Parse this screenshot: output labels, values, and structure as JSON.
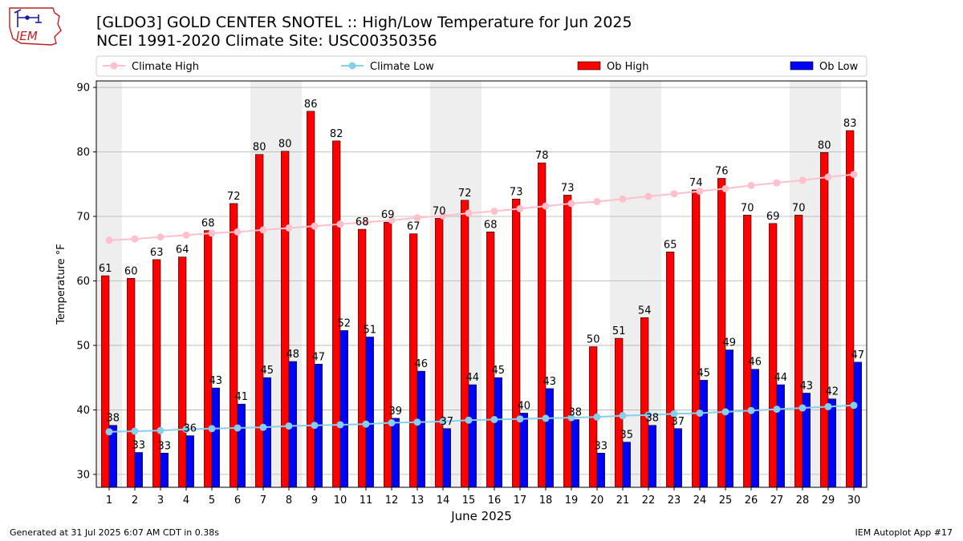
{
  "header": {
    "logo_text": "IEM",
    "title_line1": "[GLDO3] GOLD CENTER SNOTEL :: High/Low Temperature for Jun 2025",
    "title_line2": "NCEI 1991-2020 Climate Site: USC00350356"
  },
  "footer": {
    "left": "Generated at 31 Jul 2025 6:07 AM CDT in 0.38s",
    "right": "IEM Autoplot App #17"
  },
  "colors": {
    "ob_high": "#ff0000",
    "ob_low": "#0000ff",
    "climate_high": "#ffc0cb",
    "climate_low": "#87ceeb",
    "week_band": "#eeeeee",
    "grid": "#b0b0b0"
  },
  "chart_data": {
    "type": "bar",
    "xlabel": "June 2025",
    "ylabel": "Temperature °F",
    "ylim": [
      28,
      91
    ],
    "yticks": [
      30,
      40,
      50,
      60,
      70,
      80,
      90
    ],
    "grid": "horizontal",
    "legend": "top, above plot",
    "shaded_day_ranges": [
      [
        1,
        1
      ],
      [
        7,
        8
      ],
      [
        14,
        15
      ],
      [
        21,
        22
      ],
      [
        28,
        29
      ]
    ],
    "categories": [
      "1",
      "2",
      "3",
      "4",
      "5",
      "6",
      "7",
      "8",
      "9",
      "10",
      "11",
      "12",
      "13",
      "14",
      "15",
      "16",
      "17",
      "18",
      "19",
      "20",
      "21",
      "22",
      "23",
      "24",
      "25",
      "26",
      "27",
      "28",
      "29",
      "30"
    ],
    "series": [
      {
        "name": "Ob High",
        "kind": "bar",
        "values": [
          60.8,
          60.4,
          63.3,
          63.7,
          67.8,
          72.0,
          79.6,
          80.1,
          86.3,
          81.7,
          68.0,
          69.1,
          67.3,
          69.7,
          72.5,
          67.6,
          72.7,
          78.3,
          73.3,
          49.8,
          51.1,
          54.3,
          64.5,
          74.1,
          75.9,
          70.2,
          68.9,
          70.2,
          79.9,
          83.3
        ],
        "labels": [
          "61",
          "60",
          "63",
          "64",
          "68",
          "72",
          "80",
          "80",
          "86",
          "82",
          "68",
          "69",
          "67",
          "70",
          "72",
          "68",
          "73",
          "78",
          "73",
          "50",
          "51",
          "54",
          "65",
          "74",
          "76",
          "70",
          "69",
          "70",
          "80",
          "83"
        ]
      },
      {
        "name": "Ob Low",
        "kind": "bar",
        "values": [
          37.6,
          33.4,
          33.3,
          36.0,
          43.4,
          40.9,
          45.0,
          47.5,
          47.1,
          52.3,
          51.3,
          38.7,
          46.0,
          37.1,
          43.9,
          45.0,
          39.5,
          43.3,
          38.5,
          33.3,
          35.0,
          37.6,
          37.1,
          44.6,
          49.3,
          46.3,
          43.9,
          42.6,
          41.7,
          47.4
        ],
        "labels": [
          "38",
          "33",
          "33",
          "36",
          "43",
          "41",
          "45",
          "48",
          "47",
          "52",
          "51",
          "39",
          "46",
          "37",
          "44",
          "45",
          "40",
          "43",
          "38",
          "33",
          "35",
          "38",
          "37",
          "45",
          "49",
          "46",
          "44",
          "43",
          "42",
          "47"
        ]
      },
      {
        "name": "Climate High",
        "kind": "line",
        "values": [
          66.3,
          66.5,
          66.8,
          67.1,
          67.4,
          67.6,
          67.9,
          68.2,
          68.5,
          68.8,
          69.1,
          69.4,
          69.8,
          70.1,
          70.5,
          70.8,
          71.2,
          71.6,
          72.0,
          72.3,
          72.7,
          73.1,
          73.5,
          73.9,
          74.3,
          74.8,
          75.2,
          75.6,
          76.1,
          76.5
        ]
      },
      {
        "name": "Climate Low",
        "kind": "line",
        "values": [
          36.6,
          36.7,
          36.8,
          37.0,
          37.1,
          37.2,
          37.3,
          37.5,
          37.6,
          37.7,
          37.8,
          38.0,
          38.1,
          38.2,
          38.4,
          38.5,
          38.6,
          38.7,
          38.8,
          38.9,
          39.1,
          39.2,
          39.4,
          39.5,
          39.7,
          39.9,
          40.1,
          40.3,
          40.5,
          40.7
        ]
      }
    ],
    "legend_entries": [
      "Climate High",
      "Climate Low",
      "Ob High",
      "Ob Low"
    ]
  }
}
